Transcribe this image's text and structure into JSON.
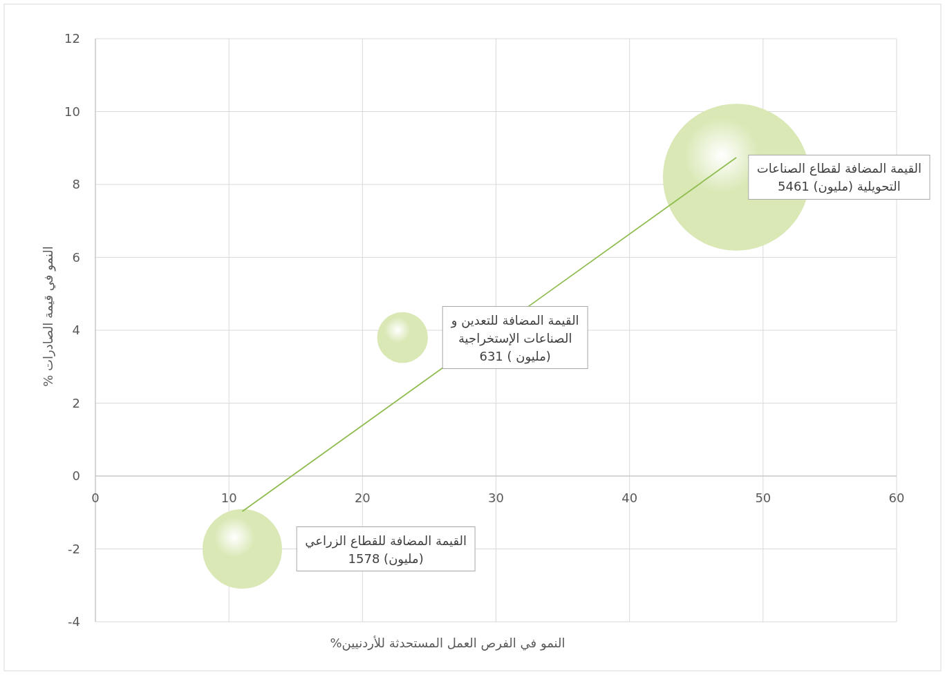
{
  "chart_data": {
    "type": "bubble",
    "xlabel": "النمو في الفرص العمل المستحدثة للأردنيين%",
    "ylabel": "النمو في قيمة الصادرات %",
    "xlim": [
      0,
      60
    ],
    "ylim": [
      -4,
      12
    ],
    "xticks": [
      0,
      10,
      20,
      30,
      40,
      50,
      60
    ],
    "yticks": [
      -4,
      -2,
      0,
      2,
      4,
      6,
      8,
      10,
      12
    ],
    "grid": true,
    "series": [
      {
        "type": "bubble",
        "color": "#d9e8b5",
        "x": [
          11,
          23,
          48
        ],
        "values": [
          -2,
          3.8,
          8.2
        ],
        "sizes": [
          0.289,
          0.116,
          1
        ]
      },
      {
        "type": "line",
        "color": "#8fbc4f",
        "x": [
          11,
          48
        ],
        "values": [
          -0.97,
          8.74
        ]
      }
    ],
    "annotations": [
      "القيمة المضافة للقطاع الزراعي\n(مليون) 1578",
      "القيمة المضافة للتعدين و\nالصناعات الإستخراجية\n(مليون ) 631",
      "القيمة المضافة لقطاع الصناعات\nالتحويلية (مليون) 5461"
    ]
  }
}
